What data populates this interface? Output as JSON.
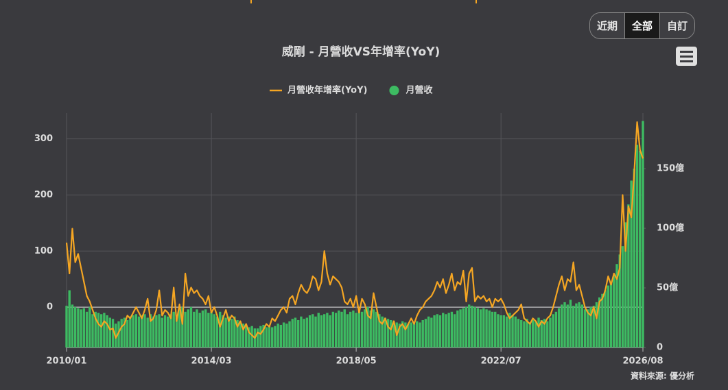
{
  "controls": [
    "近期",
    "全部",
    "自訂"
  ],
  "source": "資料來源: 優分析",
  "chart_data": {
    "type": "combo",
    "title": "威剛 - 月營收VS年增率(YoY)",
    "categories": [
      "2010/01",
      null,
      null,
      null,
      null,
      null,
      null,
      null,
      null,
      null,
      null,
      null,
      null,
      null,
      null,
      null,
      null,
      null,
      null,
      null,
      null,
      null,
      null,
      null,
      null,
      null,
      null,
      null,
      null,
      null,
      null,
      null,
      null,
      null,
      null,
      null,
      null,
      null,
      null,
      null,
      null,
      null,
      null,
      null,
      null,
      null,
      null,
      null,
      null,
      null,
      "2014/03",
      null,
      null,
      null,
      null,
      null,
      null,
      null,
      null,
      null,
      null,
      null,
      null,
      null,
      null,
      null,
      null,
      null,
      null,
      null,
      null,
      null,
      null,
      null,
      null,
      null,
      null,
      null,
      null,
      null,
      null,
      null,
      null,
      null,
      null,
      null,
      null,
      null,
      null,
      null,
      null,
      null,
      null,
      null,
      null,
      null,
      null,
      null,
      null,
      null,
      "2018/05",
      null,
      null,
      null,
      null,
      null,
      null,
      null,
      null,
      null,
      null,
      null,
      null,
      null,
      null,
      null,
      null,
      null,
      null,
      null,
      null,
      null,
      null,
      null,
      null,
      null,
      null,
      null,
      null,
      null,
      null,
      null,
      null,
      null,
      null,
      null,
      null,
      null,
      null,
      null,
      null,
      null,
      null,
      null,
      null,
      null,
      null,
      null,
      null,
      null,
      "2022/07",
      null,
      null,
      null,
      null,
      null,
      null,
      null,
      null,
      null,
      null,
      null,
      null,
      null,
      null,
      null,
      null,
      null,
      null,
      null,
      null,
      null,
      null,
      null,
      null,
      null,
      null,
      null,
      null,
      null,
      null,
      null,
      null,
      null,
      null,
      null,
      null,
      null,
      null,
      null,
      null,
      null,
      null,
      null,
      null,
      null,
      null,
      null,
      null,
      "2026/08"
    ],
    "series": [
      {
        "name": "月營收年增率(YoY)",
        "type": "line",
        "axis": "y",
        "color": "#f5a623",
        "values": [
          115,
          60,
          140,
          80,
          95,
          70,
          45,
          20,
          10,
          -5,
          -20,
          -30,
          -35,
          -25,
          -30,
          -40,
          -38,
          -55,
          -45,
          -35,
          -30,
          -15,
          -20,
          -10,
          0,
          -10,
          -20,
          -5,
          15,
          -25,
          -20,
          -5,
          30,
          -15,
          -5,
          -10,
          -20,
          35,
          -25,
          5,
          -30,
          60,
          20,
          35,
          25,
          30,
          20,
          15,
          5,
          20,
          -10,
          0,
          -15,
          -35,
          -20,
          -5,
          -25,
          -15,
          -20,
          -35,
          -25,
          -40,
          -30,
          -45,
          -50,
          -55,
          -45,
          -48,
          -40,
          -30,
          -35,
          -20,
          -25,
          -15,
          -5,
          0,
          -10,
          15,
          20,
          5,
          25,
          40,
          30,
          25,
          35,
          55,
          50,
          30,
          45,
          100,
          60,
          40,
          55,
          50,
          45,
          35,
          10,
          5,
          15,
          0,
          20,
          -10,
          15,
          5,
          -15,
          -20,
          25,
          0,
          -25,
          -30,
          -20,
          -35,
          -40,
          -25,
          -50,
          -35,
          -30,
          -40,
          -30,
          -20,
          -30,
          -15,
          -5,
          0,
          10,
          15,
          20,
          30,
          45,
          35,
          50,
          25,
          40,
          60,
          30,
          45,
          40,
          65,
          10,
          60,
          70,
          10,
          20,
          15,
          20,
          10,
          15,
          0,
          15,
          10,
          15,
          5,
          -10,
          -20,
          -15,
          -10,
          -5,
          5,
          -20,
          -25,
          -30,
          -20,
          -25,
          -35,
          -25,
          -30,
          -20,
          -15,
          0,
          20,
          40,
          55,
          30,
          50,
          45,
          80,
          30,
          40,
          20,
          0,
          -10,
          -15,
          0,
          -20,
          10,
          15,
          30,
          55,
          40,
          60,
          50,
          70,
          200,
          100,
          180,
          160,
          240,
          330,
          280,
          265
        ]
      },
      {
        "name": "月營收",
        "type": "bar",
        "axis": "y2",
        "color": "#3dbb62",
        "values": [
          35,
          48,
          36,
          34,
          33,
          32,
          33,
          30,
          34,
          28,
          30,
          29,
          28,
          29,
          27,
          25,
          24,
          20,
          22,
          24,
          25,
          23,
          26,
          27,
          28,
          26,
          27,
          28,
          25,
          28,
          26,
          27,
          28,
          25,
          27,
          26,
          28,
          30,
          25,
          33,
          34,
          30,
          32,
          34,
          30,
          32,
          29,
          31,
          32,
          29,
          30,
          28,
          26,
          30,
          27,
          25,
          26,
          24,
          26,
          23,
          22,
          20,
          19,
          17,
          18,
          16,
          16,
          18,
          19,
          17,
          18,
          17,
          18,
          20,
          19,
          21,
          20,
          22,
          24,
          25,
          23,
          26,
          24,
          25,
          27,
          28,
          26,
          29,
          27,
          28,
          29,
          27,
          30,
          29,
          31,
          30,
          32,
          28,
          30,
          31,
          29,
          33,
          30,
          32,
          34,
          31,
          32,
          30,
          28,
          26,
          25,
          24,
          23,
          22,
          21,
          20,
          22,
          21,
          20,
          21,
          20,
          22,
          21,
          23,
          24,
          26,
          25,
          27,
          28,
          27,
          29,
          28,
          29,
          30,
          28,
          31,
          32,
          33,
          34,
          36,
          35,
          34,
          33,
          32,
          33,
          32,
          31,
          30,
          30,
          28,
          27,
          27,
          26,
          29,
          27,
          26,
          24,
          23,
          22,
          24,
          21,
          23,
          22,
          25,
          23,
          24,
          22,
          25,
          28,
          30,
          33,
          36,
          38,
          36,
          40,
          35,
          37,
          38,
          36,
          32,
          32,
          34,
          35,
          38,
          42,
          45,
          48,
          52,
          55,
          60,
          70,
          78,
          85,
          105,
          120,
          140,
          150,
          170,
          165,
          190
        ]
      }
    ],
    "ylim": [
      -72,
      346
    ],
    "yticks": [
      0,
      100,
      200,
      300
    ],
    "y2lim": [
      0,
      196.6
    ],
    "y2ticks": [
      0,
      {
        "value": 50,
        "label": "50億"
      },
      {
        "value": 100,
        "label": "100億"
      },
      {
        "value": 150,
        "label": "150億"
      }
    ],
    "grid": true
  }
}
